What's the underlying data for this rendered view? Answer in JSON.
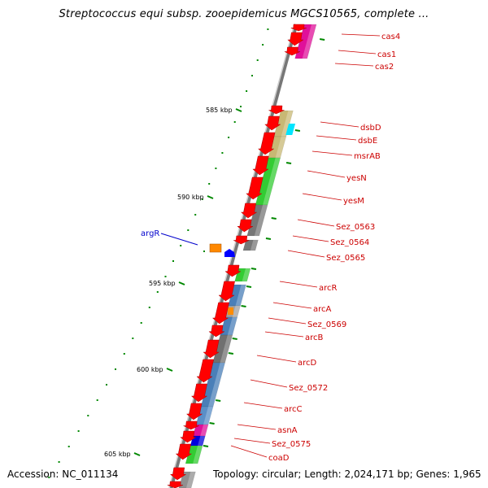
{
  "title": "Streptococcus equi subsp. zooepidemicus MGCS10565, complete ...",
  "footer": {
    "accession": "Accession: NC_011134",
    "topology": "Topology: circular; Length: 2,024,171 bp; Genes: 1,965"
  },
  "colors": {
    "forward_gene": "#ff0000",
    "label_red": "#cc0000",
    "label_blue": "#0000cc",
    "tick_green": "#008800",
    "backbone": "#888888"
  },
  "kbp_labels": [
    "585 kbp",
    "590 kbp",
    "595 kbp",
    "600 kbp",
    "605 kbp"
  ],
  "gene_labels": [
    "cas4",
    "cas1",
    "cas2",
    "dsbD",
    "dsbE",
    "msrAB",
    "yesN",
    "yesM",
    "Sez_0563",
    "Sez_0564",
    "Sez_0565",
    "arcR",
    "arcA",
    "Sez_0569",
    "arcB",
    "arcD",
    "Sez_0572",
    "arcC",
    "asnA",
    "Sez_0575",
    "coaD"
  ],
  "argR_label": "argR"
}
